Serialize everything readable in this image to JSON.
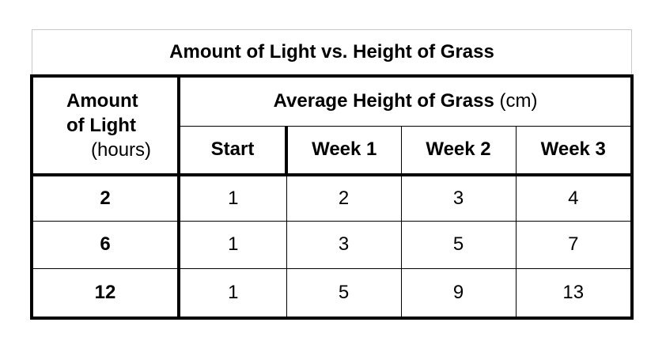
{
  "title": "Amount of Light vs. Height of Grass",
  "header": {
    "light_line1": "Amount",
    "light_line2": "of Light",
    "light_unit": "(hours)",
    "height_label": "Average Height of Grass",
    "height_unit": "(cm)",
    "columns": [
      "Start",
      "Week 1",
      "Week 2",
      "Week 3"
    ]
  },
  "rows": [
    {
      "light": "2",
      "values": [
        "1",
        "2",
        "3",
        "4"
      ]
    },
    {
      "light": "6",
      "values": [
        "1",
        "3",
        "5",
        "7"
      ]
    },
    {
      "light": "12",
      "values": [
        "1",
        "5",
        "9",
        "13"
      ]
    }
  ],
  "chart_data": {
    "type": "table",
    "title": "Amount of Light vs. Height of Grass",
    "columns": [
      "Amount of Light (hours)",
      "Start",
      "Week 1",
      "Week 2",
      "Week 3"
    ],
    "rows": [
      [
        2,
        1,
        2,
        3,
        4
      ],
      [
        6,
        1,
        3,
        5,
        7
      ],
      [
        12,
        1,
        5,
        9,
        13
      ]
    ]
  }
}
